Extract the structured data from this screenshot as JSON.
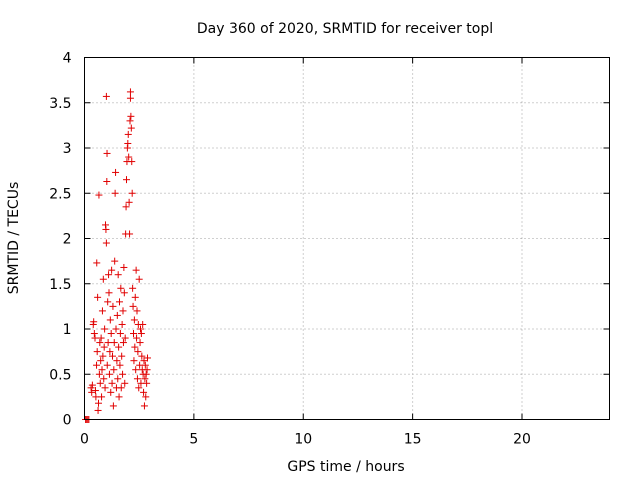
{
  "chart_data": {
    "type": "scatter",
    "title": "Day 360 of 2020, SRMTID for receiver topl",
    "xlabel": "GPS time / hours",
    "ylabel": "SRMTID / TECUs",
    "xlim": [
      0,
      24
    ],
    "ylim": [
      0,
      4
    ],
    "x_ticks": [
      0,
      5,
      10,
      15,
      20
    ],
    "x_tick_labels": [
      "0",
      "5",
      "10",
      "15",
      "20"
    ],
    "y_ticks": [
      0,
      0.5,
      1,
      1.5,
      2,
      2.5,
      3,
      3.5,
      4
    ],
    "y_tick_labels": [
      "0",
      "0.5",
      "1",
      "1.5",
      "2",
      "2.5",
      "3",
      "3.5",
      "4"
    ],
    "grid": true,
    "marker": "plus",
    "series": [
      {
        "name": "SRMTID",
        "color": "#e00000",
        "points": [
          [
            0.05,
            0.0
          ],
          [
            0.1,
            0.0
          ],
          [
            0.15,
            0.0
          ],
          [
            0.2,
            0.0
          ],
          [
            0.3,
            0.35
          ],
          [
            0.33,
            0.3
          ],
          [
            0.36,
            0.38
          ],
          [
            0.4,
            1.05
          ],
          [
            0.42,
            1.08
          ],
          [
            0.45,
            0.95
          ],
          [
            0.48,
            0.9
          ],
          [
            0.5,
            0.32
          ],
          [
            0.52,
            0.25
          ],
          [
            0.55,
            0.6
          ],
          [
            0.56,
            1.73
          ],
          [
            0.58,
            0.75
          ],
          [
            0.6,
            1.35
          ],
          [
            0.62,
            0.1
          ],
          [
            0.64,
            0.18
          ],
          [
            0.66,
            2.48
          ],
          [
            0.68,
            0.5
          ],
          [
            0.7,
            0.85
          ],
          [
            0.72,
            0.4
          ],
          [
            0.74,
            0.65
          ],
          [
            0.76,
            0.9
          ],
          [
            0.78,
            0.25
          ],
          [
            0.8,
            0.55
          ],
          [
            0.82,
            1.2
          ],
          [
            0.84,
            0.7
          ],
          [
            0.86,
            1.55
          ],
          [
            0.88,
            0.45
          ],
          [
            0.9,
            0.8
          ],
          [
            0.92,
            1.0
          ],
          [
            0.94,
            0.35
          ],
          [
            0.96,
            2.15
          ],
          [
            0.98,
            2.1
          ],
          [
            1.0,
            3.57
          ],
          [
            1.0,
            1.95
          ],
          [
            1.02,
            2.63
          ],
          [
            1.03,
            2.94
          ],
          [
            1.04,
            0.6
          ],
          [
            1.06,
            1.3
          ],
          [
            1.08,
            0.85
          ],
          [
            1.1,
            1.6
          ],
          [
            1.12,
            1.4
          ],
          [
            1.14,
            0.5
          ],
          [
            1.16,
            0.75
          ],
          [
            1.18,
            1.1
          ],
          [
            1.2,
            0.3
          ],
          [
            1.22,
            0.95
          ],
          [
            1.24,
            1.65
          ],
          [
            1.26,
            0.4
          ],
          [
            1.28,
            0.7
          ],
          [
            1.3,
            1.25
          ],
          [
            1.32,
            0.15
          ],
          [
            1.34,
            0.55
          ],
          [
            1.36,
            0.85
          ],
          [
            1.38,
            1.75
          ],
          [
            1.4,
            2.5
          ],
          [
            1.42,
            2.73
          ],
          [
            1.44,
            1.0
          ],
          [
            1.46,
            0.35
          ],
          [
            1.48,
            0.65
          ],
          [
            1.5,
            1.15
          ],
          [
            1.52,
            0.45
          ],
          [
            1.54,
            1.6
          ],
          [
            1.56,
            0.8
          ],
          [
            1.58,
            0.25
          ],
          [
            1.6,
            1.3
          ],
          [
            1.62,
            0.6
          ],
          [
            1.64,
            0.95
          ],
          [
            1.66,
            1.45
          ],
          [
            1.68,
            0.35
          ],
          [
            1.7,
            0.7
          ],
          [
            1.72,
            1.05
          ],
          [
            1.74,
            0.5
          ],
          [
            1.76,
            1.2
          ],
          [
            1.78,
            0.85
          ],
          [
            1.8,
            1.68
          ],
          [
            1.82,
            1.4
          ],
          [
            1.84,
            0.4
          ],
          [
            1.86,
            0.9
          ],
          [
            1.88,
            2.05
          ],
          [
            1.9,
            2.35
          ],
          [
            1.92,
            2.65
          ],
          [
            1.94,
            2.85
          ],
          [
            1.96,
            3.0
          ],
          [
            1.98,
            3.05
          ],
          [
            2.0,
            3.15
          ],
          [
            2.02,
            2.9
          ],
          [
            2.04,
            2.4
          ],
          [
            2.06,
            2.05
          ],
          [
            2.08,
            3.3
          ],
          [
            2.1,
            3.55
          ],
          [
            2.1,
            3.62
          ],
          [
            2.12,
            3.35
          ],
          [
            2.14,
            3.22
          ],
          [
            2.16,
            2.85
          ],
          [
            2.18,
            2.5
          ],
          [
            2.2,
            1.45
          ],
          [
            2.22,
            1.25
          ],
          [
            2.24,
            0.95
          ],
          [
            2.26,
            0.65
          ],
          [
            2.28,
            1.1
          ],
          [
            2.3,
            0.8
          ],
          [
            2.32,
            1.35
          ],
          [
            2.34,
            0.55
          ],
          [
            2.36,
            1.65
          ],
          [
            2.38,
            0.9
          ],
          [
            2.4,
            1.2
          ],
          [
            2.42,
            0.45
          ],
          [
            2.44,
            0.75
          ],
          [
            2.46,
            1.05
          ],
          [
            2.48,
            0.35
          ],
          [
            2.5,
            1.55
          ],
          [
            2.52,
            0.6
          ],
          [
            2.54,
            0.85
          ],
          [
            2.56,
            1.0
          ],
          [
            2.58,
            0.4
          ],
          [
            2.6,
            0.95
          ],
          [
            2.62,
            0.7
          ],
          [
            2.64,
            0.55
          ],
          [
            2.66,
            1.05
          ],
          [
            2.68,
            0.5
          ],
          [
            2.7,
            0.3
          ],
          [
            2.72,
            0.65
          ],
          [
            2.74,
            0.15
          ],
          [
            2.76,
            0.45
          ],
          [
            2.78,
            0.6
          ],
          [
            2.8,
            0.25
          ],
          [
            2.82,
            0.5
          ],
          [
            2.84,
            0.4
          ],
          [
            2.86,
            0.55
          ],
          [
            2.88,
            0.68
          ]
        ]
      }
    ]
  }
}
